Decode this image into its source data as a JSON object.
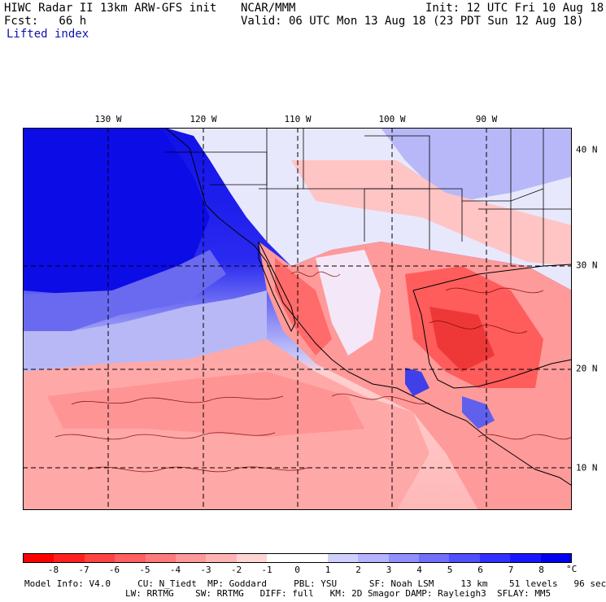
{
  "header": {
    "title_left": "HIWC Radar II 13km ARW-GFS init",
    "fcst": "Fcst:   66 h",
    "center": "NCAR/MMM",
    "init": "Init: 12 UTC Fri 10 Aug 18",
    "valid": "Valid: 06 UTC Mon 13 Aug 18 (23 PDT Sun 12 Aug 18)",
    "field": "Lifted index"
  },
  "map": {
    "lon_labels": [
      "130 W",
      "120 W",
      "110 W",
      "100 W",
      "90 W"
    ],
    "lat_labels": [
      "40 N",
      "30 N",
      "20 N",
      "10 N"
    ],
    "ocean_color": "#1010e8",
    "positive_color": "#2020ee",
    "negative_color": "#ee2020"
  },
  "colorbar": {
    "labels": [
      "-8",
      "-7",
      "-6",
      "-5",
      "-4",
      "-3",
      "-2",
      "-1",
      "0",
      "1",
      "2",
      "3",
      "4",
      "5",
      "6",
      "7",
      "8"
    ],
    "unit": "°C",
    "colors": [
      "#ff0000",
      "#ff2020",
      "#ff4242",
      "#ff6060",
      "#ff7a7a",
      "#ff9898",
      "#ffb4b4",
      "#ffd4d4",
      "#ffffff",
      "#ffffff",
      "#d0d0ff",
      "#b4b4ff",
      "#9090ff",
      "#7070ff",
      "#5050ff",
      "#3030ff",
      "#1818ff",
      "#0000f0"
    ]
  },
  "footer": {
    "line1": "Model Info: V4.0     CU: N_Tiedt  MP: Goddard     PBL: YSU      SF: Noah LSM     13 km    51 levels   96 sec",
    "line2": "LW: RRTMG    SW: RRTMG   DIFF: full   KM: 2D Smagor DAMP: Rayleigh3  SFLAY: MM5"
  }
}
